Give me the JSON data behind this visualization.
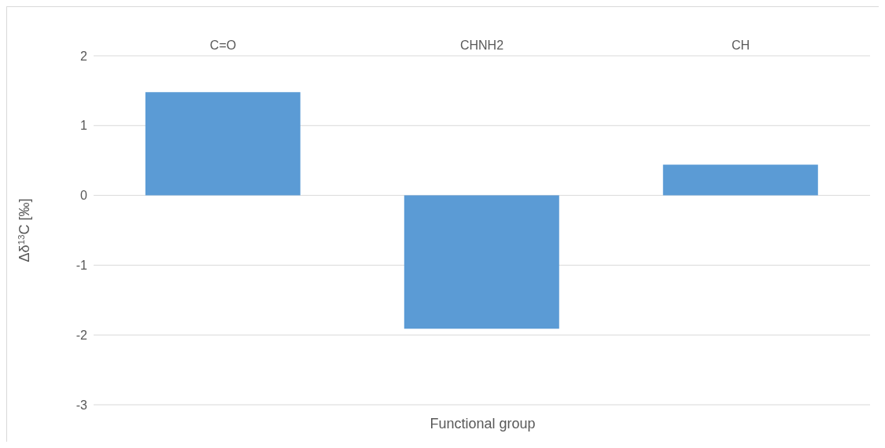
{
  "chart_data": {
    "type": "bar",
    "categories": [
      "C=O",
      "CHNH2",
      "CH"
    ],
    "values": [
      1.48,
      -1.91,
      0.44
    ],
    "color": "#5b9bd5",
    "ylim": [
      -3,
      2
    ],
    "yticks": [
      -3,
      -2,
      -1,
      0,
      1,
      2
    ],
    "grid": "y",
    "xlabel": "Functional group",
    "ylabel": "Δδ$^{13}$C [‰]"
  }
}
